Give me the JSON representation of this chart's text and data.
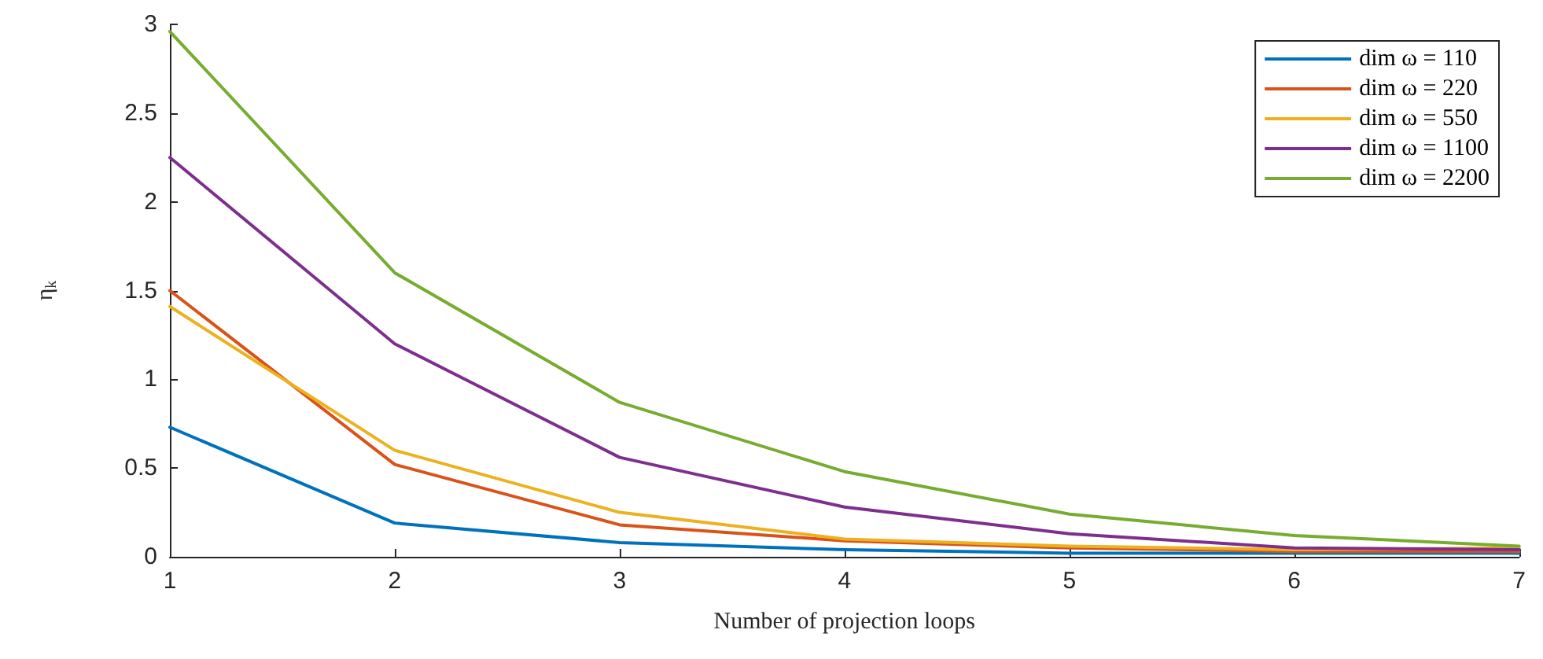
{
  "chart_data": {
    "type": "line",
    "xlabel": "Number of projection loops",
    "ylabel": "η$_{k}$",
    "x": [
      1,
      2,
      3,
      4,
      5,
      6,
      7
    ],
    "series": [
      {
        "name": "dim ω = 110",
        "color": "#0072bd",
        "values": [
          0.73,
          0.19,
          0.08,
          0.04,
          0.02,
          0.02,
          0.02
        ]
      },
      {
        "name": "dim ω = 220",
        "color": "#d95319",
        "values": [
          1.5,
          0.52,
          0.18,
          0.09,
          0.05,
          0.03,
          0.03
        ]
      },
      {
        "name": "dim ω = 550",
        "color": "#edb120",
        "values": [
          1.41,
          0.6,
          0.25,
          0.1,
          0.06,
          0.04,
          0.05
        ]
      },
      {
        "name": "dim ω = 1100",
        "color": "#7e2f8e",
        "values": [
          2.25,
          1.2,
          0.56,
          0.28,
          0.13,
          0.05,
          0.04
        ]
      },
      {
        "name": "dim ω = 2200",
        "color": "#77ac30",
        "values": [
          2.96,
          1.6,
          0.87,
          0.48,
          0.24,
          0.12,
          0.06
        ]
      }
    ],
    "xlim": [
      1,
      7
    ],
    "xticks": [
      1,
      2,
      3,
      4,
      5,
      6,
      7
    ],
    "ylim": [
      0,
      3
    ],
    "yticks": [
      0,
      0.5,
      1,
      1.5,
      2,
      2.5,
      3
    ],
    "grid": false,
    "legend": "top right",
    "marker": "none",
    "line_style": "solid"
  }
}
